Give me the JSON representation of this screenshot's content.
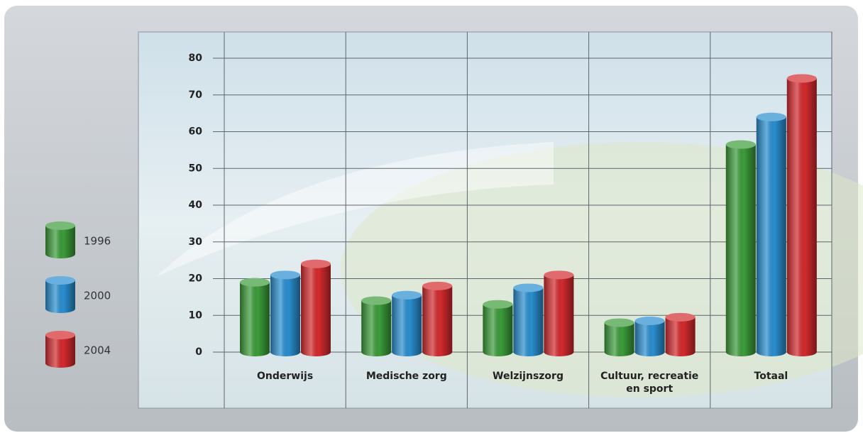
{
  "chart_data": {
    "type": "bar",
    "categories": [
      "Onderwijs",
      "Medische zorg",
      "Welzijnszorg",
      "Cultuur, recreatie en sport",
      "Totaal"
    ],
    "series": [
      {
        "name": "1996",
        "color": "#3c9c3a",
        "values": [
          19,
          14,
          13,
          8,
          56.5
        ]
      },
      {
        "name": "2000",
        "color": "#2a8fd0",
        "values": [
          21,
          15.5,
          17.5,
          8.5,
          64
        ]
      },
      {
        "name": "2004",
        "color": "#d42a2e",
        "values": [
          24,
          18,
          21,
          9.5,
          74.5
        ]
      }
    ],
    "ylim": [
      0,
      80
    ],
    "yticks": [
      0,
      10,
      20,
      30,
      40,
      50,
      60,
      70,
      80
    ],
    "grid": true
  }
}
